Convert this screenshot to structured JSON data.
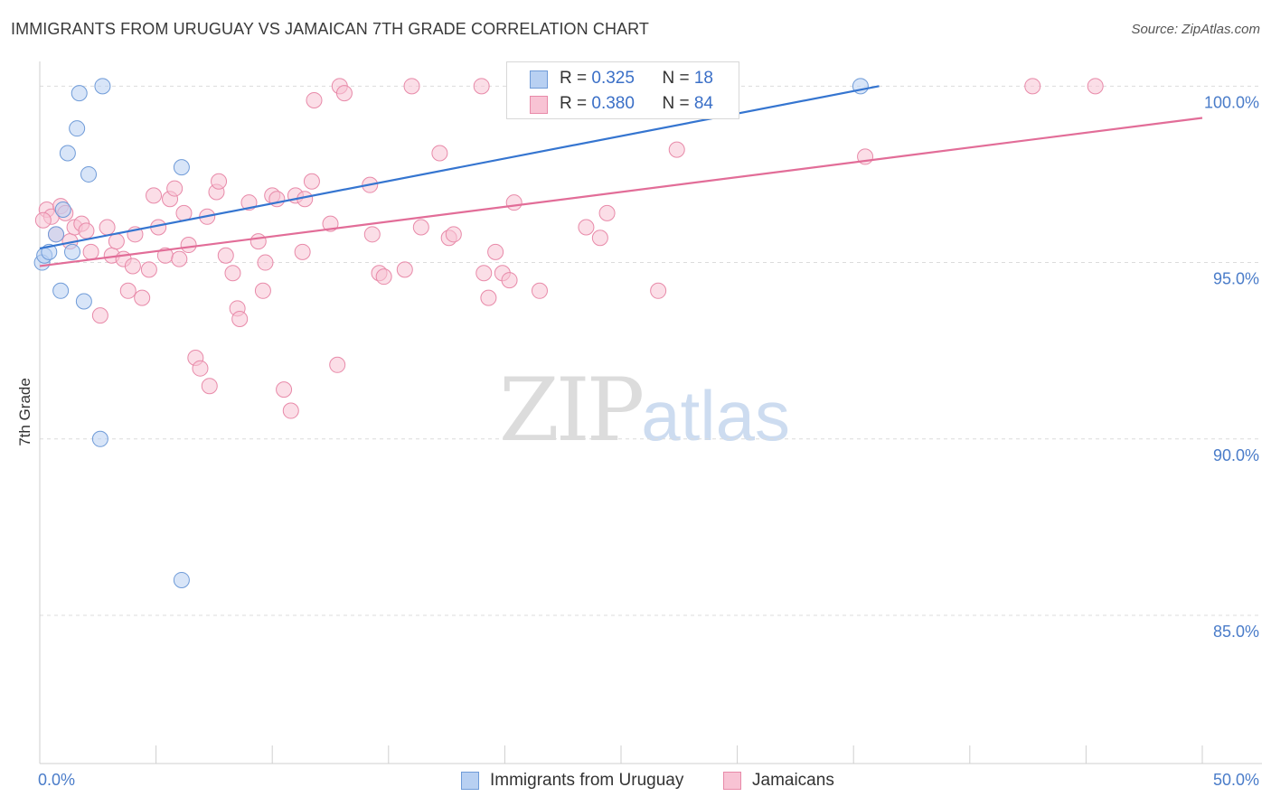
{
  "title": "IMMIGRANTS FROM URUGUAY VS JAMAICAN 7TH GRADE CORRELATION CHART",
  "source": "Source: ZipAtlas.com",
  "watermark": {
    "zip": "ZIP",
    "atlas": "atlas"
  },
  "legend": {
    "uruguay": {
      "r_label": "R = ",
      "r_value": "0.325",
      "n_label": "N = ",
      "n_value": "18"
    },
    "jamaica": {
      "r_label": "R = ",
      "r_value": "0.380",
      "n_label": "N = ",
      "n_value": "84"
    }
  },
  "bottom_legend": {
    "uruguay": "Immigrants from Uruguay",
    "jamaica": "Jamaicans"
  },
  "colors": {
    "uruguay_fill": "#b8d0f2",
    "uruguay_stroke": "#6f9bd8",
    "uruguay_line": "#3575d0",
    "jamaica_fill": "#f8c3d4",
    "jamaica_stroke": "#e88aa9",
    "jamaica_line": "#e26d98",
    "tick_text": "#4a7cc9"
  },
  "chart_data": {
    "type": "scatter",
    "title": "IMMIGRANTS FROM URUGUAY VS JAMAICAN 7TH GRADE CORRELATION CHART",
    "xlabel": "",
    "ylabel": "7th Grade",
    "xlim": [
      0,
      50
    ],
    "ylim": [
      80.8,
      100.7
    ],
    "x_ticks": [
      "0.0%",
      "50.0%"
    ],
    "y_ticks": [
      {
        "value": 100,
        "label": "100.0%"
      },
      {
        "value": 95,
        "label": "95.0%"
      },
      {
        "value": 90,
        "label": "90.0%"
      },
      {
        "value": 85,
        "label": "85.0%"
      }
    ],
    "grid": true,
    "series": [
      {
        "name": "Immigrants from Uruguay",
        "color": "#6f9bd8",
        "trend": {
          "x": [
            0,
            36.1
          ],
          "y": [
            95.4,
            100.0
          ]
        },
        "points": [
          [
            0.1,
            95.0
          ],
          [
            0.2,
            95.2
          ],
          [
            0.4,
            95.3
          ],
          [
            0.7,
            95.8
          ],
          [
            0.9,
            94.2
          ],
          [
            1.0,
            96.5
          ],
          [
            1.2,
            98.1
          ],
          [
            1.4,
            95.3
          ],
          [
            1.6,
            98.8
          ],
          [
            1.7,
            99.8
          ],
          [
            1.9,
            93.9
          ],
          [
            2.1,
            97.5
          ],
          [
            2.6,
            90.0
          ],
          [
            2.7,
            100.0
          ],
          [
            6.1,
            97.7
          ],
          [
            6.1,
            86.0
          ],
          [
            35.3,
            100.0
          ],
          [
            23.7,
            100.0
          ]
        ]
      },
      {
        "name": "Jamaicans",
        "color": "#e88aa9",
        "trend": {
          "x": [
            0,
            50
          ],
          "y": [
            94.9,
            99.1
          ]
        },
        "points": [
          [
            0.3,
            96.5
          ],
          [
            0.5,
            96.3
          ],
          [
            0.7,
            95.8
          ],
          [
            0.9,
            96.6
          ],
          [
            1.1,
            96.4
          ],
          [
            1.3,
            95.6
          ],
          [
            1.5,
            96.0
          ],
          [
            1.8,
            96.1
          ],
          [
            2.0,
            95.9
          ],
          [
            2.2,
            95.3
          ],
          [
            2.6,
            93.5
          ],
          [
            2.9,
            96.0
          ],
          [
            3.1,
            95.2
          ],
          [
            3.3,
            95.6
          ],
          [
            3.6,
            95.1
          ],
          [
            3.8,
            94.2
          ],
          [
            4.0,
            94.9
          ],
          [
            4.1,
            95.8
          ],
          [
            4.4,
            94.0
          ],
          [
            4.7,
            94.8
          ],
          [
            4.9,
            96.9
          ],
          [
            5.1,
            96.0
          ],
          [
            5.4,
            95.2
          ],
          [
            5.6,
            96.8
          ],
          [
            5.8,
            97.1
          ],
          [
            6.0,
            95.1
          ],
          [
            6.2,
            96.4
          ],
          [
            6.4,
            95.5
          ],
          [
            6.7,
            92.3
          ],
          [
            6.9,
            92.0
          ],
          [
            7.2,
            96.3
          ],
          [
            7.3,
            91.5
          ],
          [
            7.6,
            97.0
          ],
          [
            7.7,
            97.3
          ],
          [
            8.0,
            95.2
          ],
          [
            8.3,
            94.7
          ],
          [
            8.5,
            93.7
          ],
          [
            8.6,
            93.4
          ],
          [
            9.0,
            96.7
          ],
          [
            9.4,
            95.6
          ],
          [
            9.6,
            94.2
          ],
          [
            9.7,
            95.0
          ],
          [
            10.0,
            96.9
          ],
          [
            10.2,
            96.8
          ],
          [
            10.5,
            91.4
          ],
          [
            10.8,
            90.8
          ],
          [
            11.0,
            96.9
          ],
          [
            11.4,
            96.8
          ],
          [
            11.3,
            95.3
          ],
          [
            11.7,
            97.3
          ],
          [
            11.8,
            99.6
          ],
          [
            12.5,
            96.1
          ],
          [
            12.8,
            92.1
          ],
          [
            12.9,
            100.0
          ],
          [
            13.1,
            99.8
          ],
          [
            14.2,
            97.2
          ],
          [
            14.3,
            95.8
          ],
          [
            14.6,
            94.7
          ],
          [
            14.8,
            94.6
          ],
          [
            15.7,
            94.8
          ],
          [
            16.0,
            100.0
          ],
          [
            16.4,
            96.0
          ],
          [
            17.2,
            98.1
          ],
          [
            17.6,
            95.7
          ],
          [
            17.8,
            95.8
          ],
          [
            19.0,
            100.0
          ],
          [
            19.1,
            94.7
          ],
          [
            19.3,
            94.0
          ],
          [
            19.6,
            95.3
          ],
          [
            19.9,
            94.7
          ],
          [
            20.2,
            94.5
          ],
          [
            20.4,
            96.7
          ],
          [
            21.5,
            94.2
          ],
          [
            23.5,
            96.0
          ],
          [
            24.0,
            100.0
          ],
          [
            24.1,
            95.7
          ],
          [
            24.4,
            96.4
          ],
          [
            26.3,
            100.0
          ],
          [
            26.6,
            94.2
          ],
          [
            27.4,
            98.2
          ],
          [
            35.5,
            98.0
          ],
          [
            42.7,
            100.0
          ],
          [
            45.4,
            100.0
          ],
          [
            0.15,
            96.2
          ]
        ]
      }
    ]
  }
}
